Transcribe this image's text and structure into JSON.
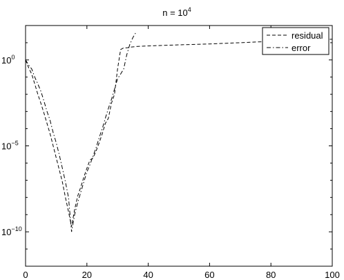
{
  "chart_data": {
    "type": "line",
    "title": {
      "base": "n = 10",
      "exponent": "4"
    },
    "xlabel": "",
    "ylabel": "",
    "xlim": [
      0,
      100
    ],
    "ylim": [
      1e-12,
      100
    ],
    "yscale": "log",
    "grid": false,
    "legend_position": "top-right",
    "x_ticks": [
      "0",
      "20",
      "40",
      "60",
      "80",
      "100"
    ],
    "y_ticks": [
      {
        "base": "10",
        "exponent": "0",
        "value": 1
      },
      {
        "base": "10",
        "exponent": "−5",
        "value": 1e-05
      },
      {
        "base": "10",
        "exponent": "−10",
        "value": 1e-10
      }
    ],
    "series": [
      {
        "name": "residual",
        "style": "dashed",
        "color": "#000000",
        "points": [
          [
            0,
            1.0
          ],
          [
            1,
            0.35
          ],
          [
            2,
            0.15
          ],
          [
            3,
            0.04
          ],
          [
            4,
            0.01
          ],
          [
            5,
            0.003
          ],
          [
            6,
            0.0008
          ],
          [
            7,
            0.0002
          ],
          [
            8,
            5e-05
          ],
          [
            9,
            1e-05
          ],
          [
            10,
            2e-06
          ],
          [
            11,
            4e-07
          ],
          [
            12,
            8e-08
          ],
          [
            13,
            1e-08
          ],
          [
            14,
            1.5e-09
          ],
          [
            15,
            2e-10
          ],
          [
            16,
            2e-09
          ],
          [
            17,
            1.2e-08
          ],
          [
            18,
            4e-08
          ],
          [
            19,
            1.5e-07
          ],
          [
            20,
            5e-07
          ],
          [
            21,
            1.5e-06
          ],
          [
            22,
            2e-06
          ],
          [
            23,
            5e-06
          ],
          [
            24,
            1.5e-05
          ],
          [
            25,
            5e-05
          ],
          [
            26,
            0.0002
          ],
          [
            27,
            0.0004
          ],
          [
            28,
            0.003
          ],
          [
            29,
            0.01
          ],
          [
            30,
            0.3
          ],
          [
            31,
            4.0
          ],
          [
            32,
            5.0
          ],
          [
            33,
            5.0
          ],
          [
            34,
            5.5
          ],
          [
            36,
            6.0
          ],
          [
            40,
            6.5
          ],
          [
            50,
            7.5
          ],
          [
            60,
            8.5
          ],
          [
            70,
            10
          ],
          [
            80,
            12
          ],
          [
            90,
            14
          ],
          [
            100,
            16
          ]
        ]
      },
      {
        "name": "error",
        "style": "dashdot",
        "color": "#000000",
        "points": [
          [
            0,
            1.0
          ],
          [
            1,
            0.5
          ],
          [
            2,
            0.3
          ],
          [
            3,
            0.1
          ],
          [
            4,
            0.04
          ],
          [
            5,
            0.015
          ],
          [
            6,
            0.004
          ],
          [
            7,
            0.001
          ],
          [
            8,
            0.0003
          ],
          [
            9,
            6e-05
          ],
          [
            10,
            1.5e-05
          ],
          [
            11,
            3e-06
          ],
          [
            12,
            5e-07
          ],
          [
            13,
            8e-08
          ],
          [
            14,
            1e-08
          ],
          [
            15,
            1e-10
          ],
          [
            16,
            1e-09
          ],
          [
            17,
            5e-09
          ],
          [
            18,
            2e-08
          ],
          [
            19,
            8e-08
          ],
          [
            20,
            3e-07
          ],
          [
            21,
            8e-07
          ],
          [
            22,
            2.5e-06
          ],
          [
            23,
            8e-06
          ],
          [
            24,
            3e-05
          ],
          [
            25,
            0.0001
          ],
          [
            26,
            0.0004
          ],
          [
            27,
            0.0015
          ],
          [
            28,
            0.005
          ],
          [
            29,
            0.02
          ],
          [
            30,
            0.08
          ],
          [
            31,
            0.15
          ],
          [
            32,
            0.3
          ],
          [
            33,
            2.0
          ],
          [
            34,
            8.0
          ],
          [
            35,
            20
          ],
          [
            36,
            40
          ]
        ]
      }
    ]
  }
}
